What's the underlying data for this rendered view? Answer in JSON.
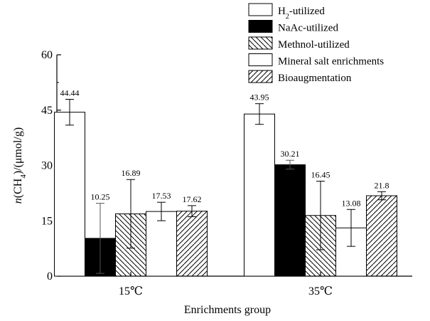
{
  "chart_data": {
    "type": "bar",
    "categories": [
      "15℃",
      "35℃"
    ],
    "series": [
      {
        "name": "H2-utilized",
        "values": [
          44.44,
          43.95
        ],
        "errors": [
          3.5,
          2.8
        ],
        "pattern": "empty"
      },
      {
        "name": "NaAc-utilized",
        "values": [
          10.25,
          30.21
        ],
        "errors": [
          9.5,
          1.2
        ],
        "pattern": "solid"
      },
      {
        "name": "Methnol-utilized",
        "values": [
          16.89,
          16.45
        ],
        "errors": [
          9.3,
          9.3
        ],
        "pattern": "back-diagonal"
      },
      {
        "name": "Mineral salt enrichments",
        "values": [
          17.53,
          13.08
        ],
        "errors": [
          2.5,
          5.0
        ],
        "pattern": "empty"
      },
      {
        "name": "Bioaugmentation",
        "values": [
          17.62,
          21.8
        ],
        "errors": [
          1.5,
          1.1
        ],
        "pattern": "forward-diagonal"
      }
    ],
    "data_labels": [
      [
        "44.44",
        "43.95"
      ],
      [
        "10.25",
        "30.21"
      ],
      [
        "16.89",
        "16.45"
      ],
      [
        "17.53",
        "13.08"
      ],
      [
        "17.62",
        "21.8"
      ]
    ],
    "xlabel": "Enrichments group",
    "ylabel_prefix": "n",
    "ylabel_main": "(CH",
    "ylabel_sub": "4",
    "ylabel_rest": ")/(μmol/g)",
    "yticks": [
      0,
      15,
      30,
      45,
      60
    ],
    "ylim": [
      0,
      60
    ],
    "legend": {
      "position": "top-right",
      "entries": [
        {
          "main": "H",
          "sub": "2",
          "rest": "-utilized"
        },
        {
          "main": "NaAc-utilized",
          "sub": "",
          "rest": ""
        },
        {
          "main": "Methnol-utilized",
          "sub": "",
          "rest": ""
        },
        {
          "main": "Mineral salt enrichments",
          "sub": "",
          "rest": ""
        },
        {
          "main": "Bioaugmentation",
          "sub": "",
          "rest": ""
        }
      ]
    },
    "grid": false
  }
}
